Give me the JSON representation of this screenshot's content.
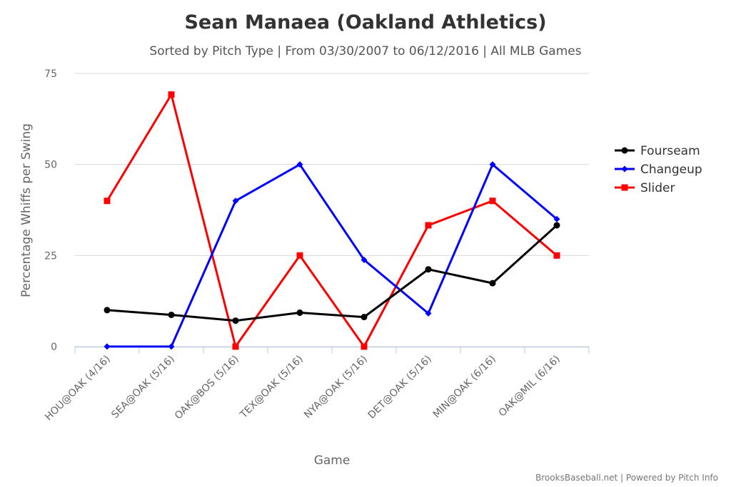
{
  "chart_data": {
    "type": "line",
    "title": "Sean Manaea (Oakland Athletics)",
    "subtitle": "Sorted by Pitch Type | From 03/30/2007 to 06/12/2016 | All MLB Games",
    "xlabel": "Game",
    "ylabel": "Percentage Whiffs per Swing",
    "categories": [
      "HOU@OAK (4/16)",
      "SEA@OAK (5/16)",
      "OAK@BOS (5/16)",
      "TEX@OAK (5/16)",
      "NYA@OAK (5/16)",
      "DET@OAK (5/16)",
      "MIN@OAK (6/16)",
      "OAK@MIL (6/16)"
    ],
    "ylim": [
      0,
      75
    ],
    "yticks": [
      "0",
      "25",
      "50",
      "75"
    ],
    "grid": true,
    "legend_position": "right",
    "series": [
      {
        "name": "Fourseam",
        "color": "#000000",
        "marker": "circle",
        "values": [
          10,
          8.7,
          7.1,
          9.3,
          8.1,
          21.2,
          17.4,
          33.3
        ]
      },
      {
        "name": "Changeup",
        "color": "#0000ff",
        "marker": "diamond",
        "values": [
          0,
          0,
          40,
          50,
          23.8,
          9.1,
          50,
          35
        ]
      },
      {
        "name": "Slider",
        "color": "#ff0000",
        "marker": "square",
        "values": [
          40,
          69.2,
          0,
          25,
          0,
          33.3,
          40,
          25
        ]
      }
    ],
    "credits": "BrooksBaseball.net | Powered by Pitch Info"
  }
}
